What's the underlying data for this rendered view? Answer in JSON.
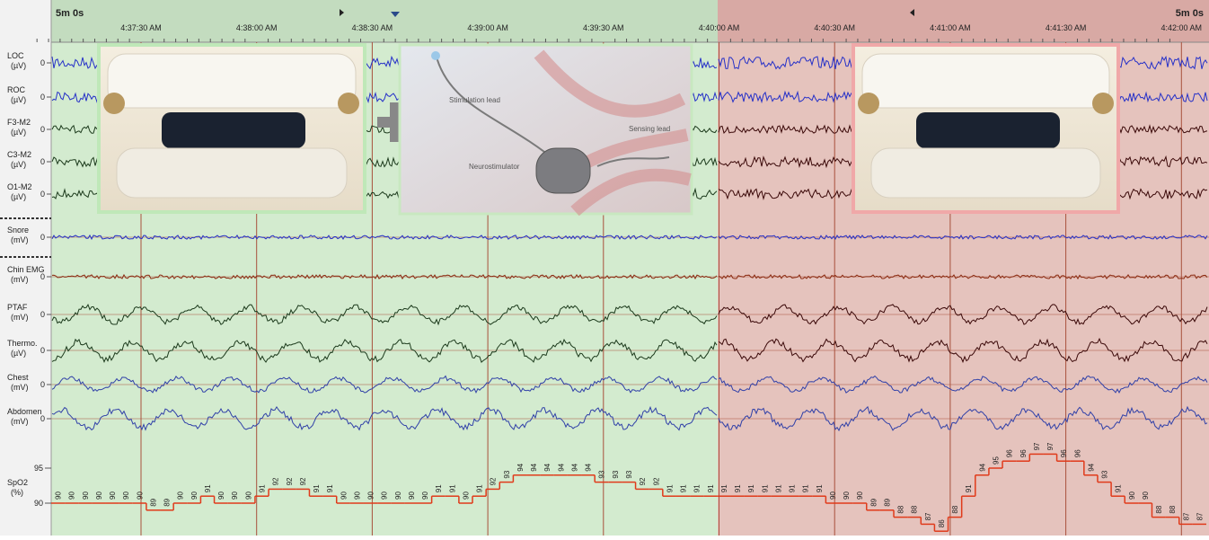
{
  "header": {
    "duration_left": "5m 0s",
    "duration_right": "5m 0s"
  },
  "time_axis": {
    "labels": [
      "4:37:30 AM",
      "4:38:00 AM",
      "4:38:30 AM",
      "4:39:00 AM",
      "4:39:30 AM",
      "4:40:00 AM",
      "4:40:30 AM",
      "4:41:00 AM",
      "4:41:30 AM",
      "4:42:00 AM"
    ]
  },
  "channels": [
    {
      "label": "LOC",
      "unit": "(µV)",
      "zero": 0
    },
    {
      "label": "ROC",
      "unit": "(µV)",
      "zero": 0
    },
    {
      "label": "F3-M2",
      "unit": "(µV)",
      "zero": 0
    },
    {
      "label": "C3-M2",
      "unit": "(µV)",
      "zero": 0
    },
    {
      "label": "O1-M2",
      "unit": "(µV)",
      "zero": 0
    },
    {
      "label": "Snore",
      "unit": "(mV)",
      "zero": 0
    },
    {
      "label": "Chin EMG",
      "unit": "(mV)",
      "zero": 0
    },
    {
      "label": "PTAF",
      "unit": "(mV)",
      "zero": 0
    },
    {
      "label": "Thermo.",
      "unit": "(µV)",
      "zero": 0
    },
    {
      "label": "Chest",
      "unit": "(mV)",
      "zero": 0
    },
    {
      "label": "Abdomen",
      "unit": "(mV)",
      "zero": 0
    }
  ],
  "spo2": {
    "label": "SpO2",
    "unit": "(%)",
    "ticks": [
      95,
      90
    ],
    "values": [
      90,
      90,
      90,
      90,
      90,
      90,
      90,
      89,
      89,
      90,
      90,
      91,
      90,
      90,
      90,
      91,
      92,
      92,
      92,
      91,
      91,
      90,
      90,
      90,
      90,
      90,
      90,
      90,
      91,
      91,
      90,
      91,
      92,
      93,
      94,
      94,
      94,
      94,
      94,
      94,
      93,
      93,
      93,
      92,
      92,
      91,
      91,
      91,
      91,
      91,
      91,
      91,
      91,
      91,
      91,
      91,
      91,
      90,
      90,
      90,
      89,
      89,
      88,
      88,
      87,
      86,
      88,
      91,
      94,
      95,
      96,
      96,
      97,
      97,
      96,
      96,
      94,
      93,
      91,
      90,
      90,
      88,
      88,
      87,
      87
    ]
  },
  "illustration": {
    "stimulation_lead": "Stimulation lead",
    "sensing_lead": "Sensing lead",
    "neurostimulator": "Neurostimulator"
  }
}
